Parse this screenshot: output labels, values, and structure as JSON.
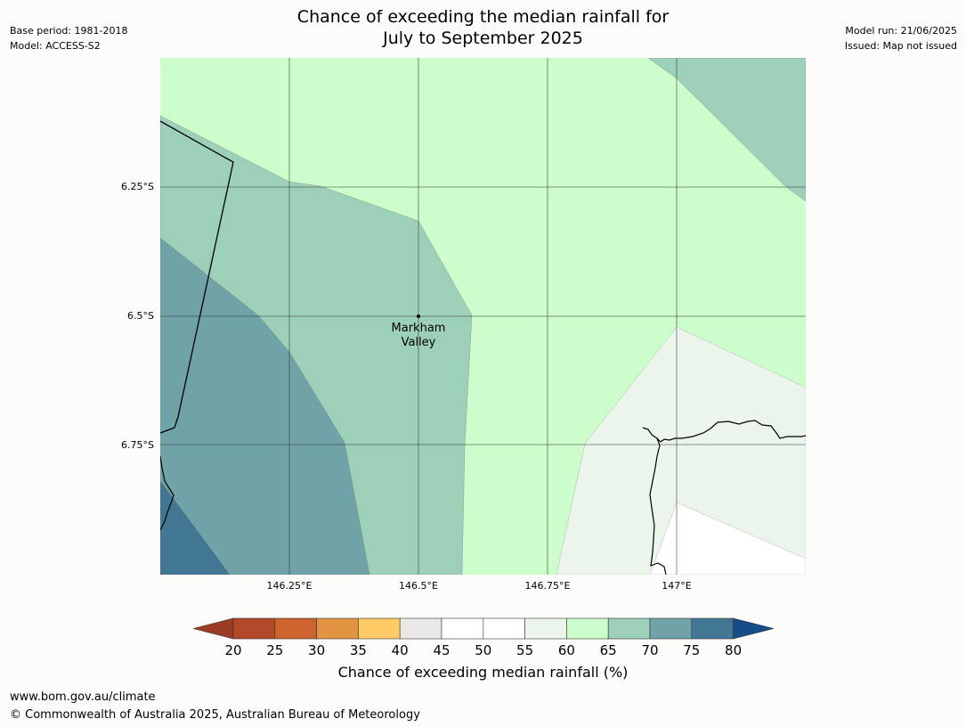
{
  "header": {
    "title_line1": "Chance of exceeding the median rainfall for",
    "title_line2": "July to September 2025",
    "base_period": "Base period: 1981-2018",
    "model": "Model: ACCESS-S2",
    "model_run": "Model run: 21/06/2025",
    "issued": "Issued: Map not issued"
  },
  "map": {
    "lat_labels": [
      "6.25°S",
      "6.5°S",
      "6.75°S"
    ],
    "lon_labels": [
      "146.25°E",
      "146.5°E",
      "146.75°E",
      "147°E"
    ],
    "place": {
      "name_line1": "Markham",
      "name_line2": "Valley",
      "lat": -6.5,
      "lon": 146.5
    },
    "extent": {
      "lon_min": 146.0,
      "lon_max": 147.25,
      "lat_min": -7.0,
      "lat_max": -6.0
    },
    "regions": [
      {
        "category": "60-65",
        "color": "#ccfdcb"
      },
      {
        "category": "65-70",
        "color": "#9dd0b9"
      },
      {
        "category": "70-75",
        "color": "#6fa3a8"
      },
      {
        "category": "75-80",
        "color": "#417695"
      },
      {
        "category": "55-60",
        "color": "#ebf5ec"
      },
      {
        "category": "50-55",
        "color": "#ffffff"
      }
    ]
  },
  "colorbar": {
    "label": "Chance of exceeding median rainfall (%)",
    "ticks": [
      "20",
      "25",
      "30",
      "35",
      "40",
      "45",
      "50",
      "55",
      "60",
      "65",
      "70",
      "75",
      "80"
    ],
    "low_extend_color": "#9d3c25",
    "high_extend_color": "#154d89",
    "colors": [
      "#b3482a",
      "#ce632f",
      "#e29344",
      "#fdca65",
      "#ebe9e5",
      "#ffffff",
      "#ffffff",
      "#ebf5ec",
      "#ccfdcb",
      "#9dd0b9",
      "#6fa3a8",
      "#417695"
    ]
  },
  "footer": {
    "url": "www.bom.gov.au/climate",
    "copyright": "© Commonwealth of Australia 2025, Australian Bureau of Meteorology"
  }
}
